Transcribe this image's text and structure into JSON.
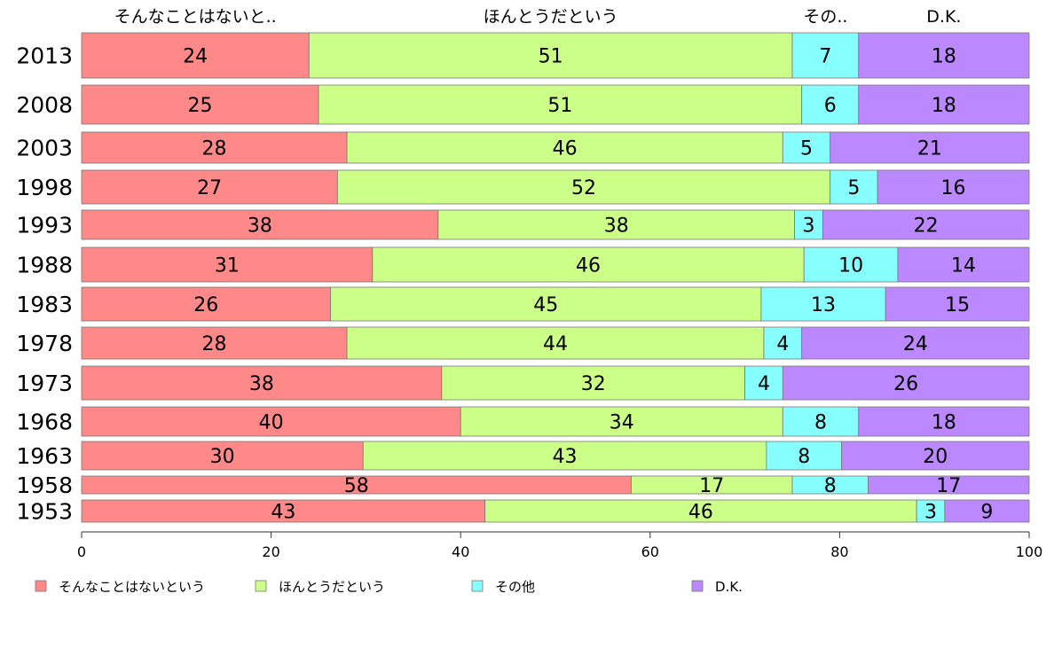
{
  "chart_data": {
    "type": "bar",
    "orientation": "horizontal",
    "stacked": true,
    "categories": [
      "2013",
      "2008",
      "2003",
      "1998",
      "1993",
      "1988",
      "1983",
      "1978",
      "1973",
      "1968",
      "1963",
      "1958",
      "1953"
    ],
    "series": [
      {
        "name": "そんなことはないという",
        "top_label": "そんなことはないと..",
        "color": "#FF8888",
        "values": [
          24,
          25,
          28,
          27,
          38,
          31,
          26,
          28,
          38,
          40,
          30,
          58,
          43
        ]
      },
      {
        "name": "ほんとうだという",
        "top_label": "ほんとうだという",
        "color": "#CCFF88",
        "values": [
          51,
          51,
          46,
          52,
          38,
          46,
          45,
          44,
          32,
          34,
          43,
          17,
          46
        ]
      },
      {
        "name": "その他",
        "top_label": "その..",
        "color": "#88FFFF",
        "values": [
          7,
          6,
          5,
          5,
          3,
          10,
          13,
          4,
          4,
          8,
          8,
          8,
          3
        ]
      },
      {
        "name": "D.K.",
        "top_label": "D.K.",
        "color": "#BB88FF",
        "values": [
          18,
          18,
          21,
          16,
          22,
          14,
          15,
          24,
          26,
          18,
          20,
          17,
          9
        ]
      }
    ],
    "xlim": [
      0,
      100
    ],
    "xticks": [
      "0",
      "20",
      "40",
      "60",
      "80",
      "100"
    ],
    "legend": "bottom",
    "grid": false
  }
}
